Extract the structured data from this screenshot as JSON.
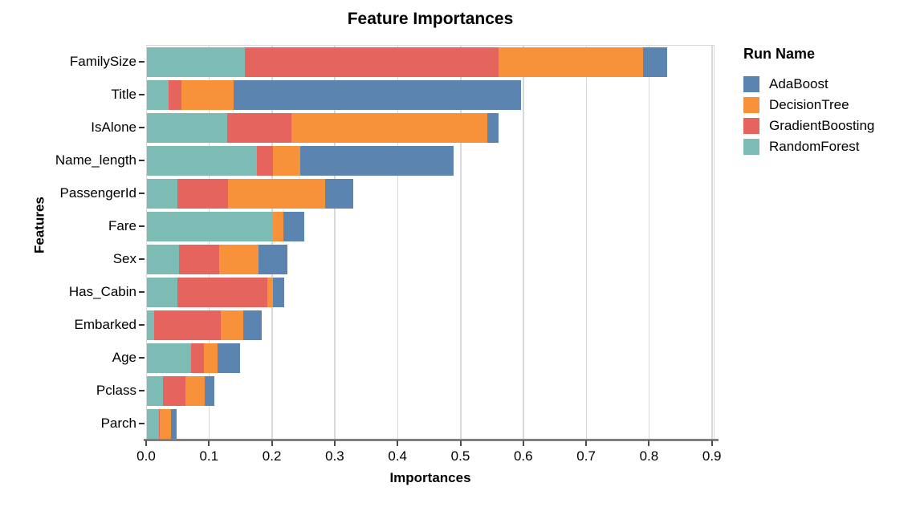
{
  "title": "Feature Importances",
  "axes": {
    "x_label": "Importances",
    "y_label": "Features",
    "x_ticks": [
      "0.0",
      "0.1",
      "0.2",
      "0.3",
      "0.4",
      "0.5",
      "0.6",
      "0.7",
      "0.8",
      "0.9"
    ]
  },
  "legend": {
    "title": "Run Name",
    "items": [
      {
        "label": "AdaBoost",
        "color": "#5b84b1"
      },
      {
        "label": "DecisionTree",
        "color": "#f7923a"
      },
      {
        "label": "GradientBoosting",
        "color": "#e5645e"
      },
      {
        "label": "RandomForest",
        "color": "#7dbcb5"
      }
    ]
  },
  "colors": {
    "gridline": "#d9d9d9",
    "plot_border": "#d9d9d9",
    "axis_line": "#7f7f7f",
    "tick": "#4d4d4d"
  },
  "chart_data": {
    "type": "bar",
    "orientation": "horizontal",
    "stacked": true,
    "title": "Feature Importances",
    "xlabel": "Importances",
    "ylabel": "Features",
    "xlim": [
      0.0,
      0.9
    ],
    "x_tick_step": 0.1,
    "grid": true,
    "legend_title": "Run Name",
    "legend_position": "right",
    "categories": [
      "FamilySize",
      "Title",
      "IsAlone",
      "Name_length",
      "PassengerId",
      "Fare",
      "Sex",
      "Has_Cabin",
      "Embarked",
      "Age",
      "Pclass",
      "Parch"
    ],
    "stack_order_from_axis": [
      "RandomForest",
      "GradientBoosting",
      "DecisionTree",
      "AdaBoost"
    ],
    "series": [
      {
        "name": "AdaBoost",
        "color": "#5b84b1",
        "values": [
          0.039,
          0.457,
          0.018,
          0.244,
          0.045,
          0.033,
          0.047,
          0.018,
          0.03,
          0.035,
          0.015,
          0.009
        ]
      },
      {
        "name": "DecisionTree",
        "color": "#f7923a",
        "values": [
          0.229,
          0.083,
          0.311,
          0.044,
          0.154,
          0.017,
          0.062,
          0.009,
          0.036,
          0.022,
          0.031,
          0.017
        ]
      },
      {
        "name": "GradientBoosting",
        "color": "#e5645e",
        "values": [
          0.404,
          0.021,
          0.102,
          0.025,
          0.081,
          0.0,
          0.064,
          0.143,
          0.106,
          0.021,
          0.035,
          0.002
        ]
      },
      {
        "name": "RandomForest",
        "color": "#7dbcb5",
        "values": [
          0.156,
          0.034,
          0.128,
          0.175,
          0.048,
          0.2,
          0.051,
          0.048,
          0.011,
          0.07,
          0.026,
          0.019
        ]
      }
    ],
    "bar_totals": [
      0.828,
      0.595,
      0.559,
      0.488,
      0.328,
      0.25,
      0.224,
      0.218,
      0.183,
      0.148,
      0.107,
      0.047
    ]
  }
}
